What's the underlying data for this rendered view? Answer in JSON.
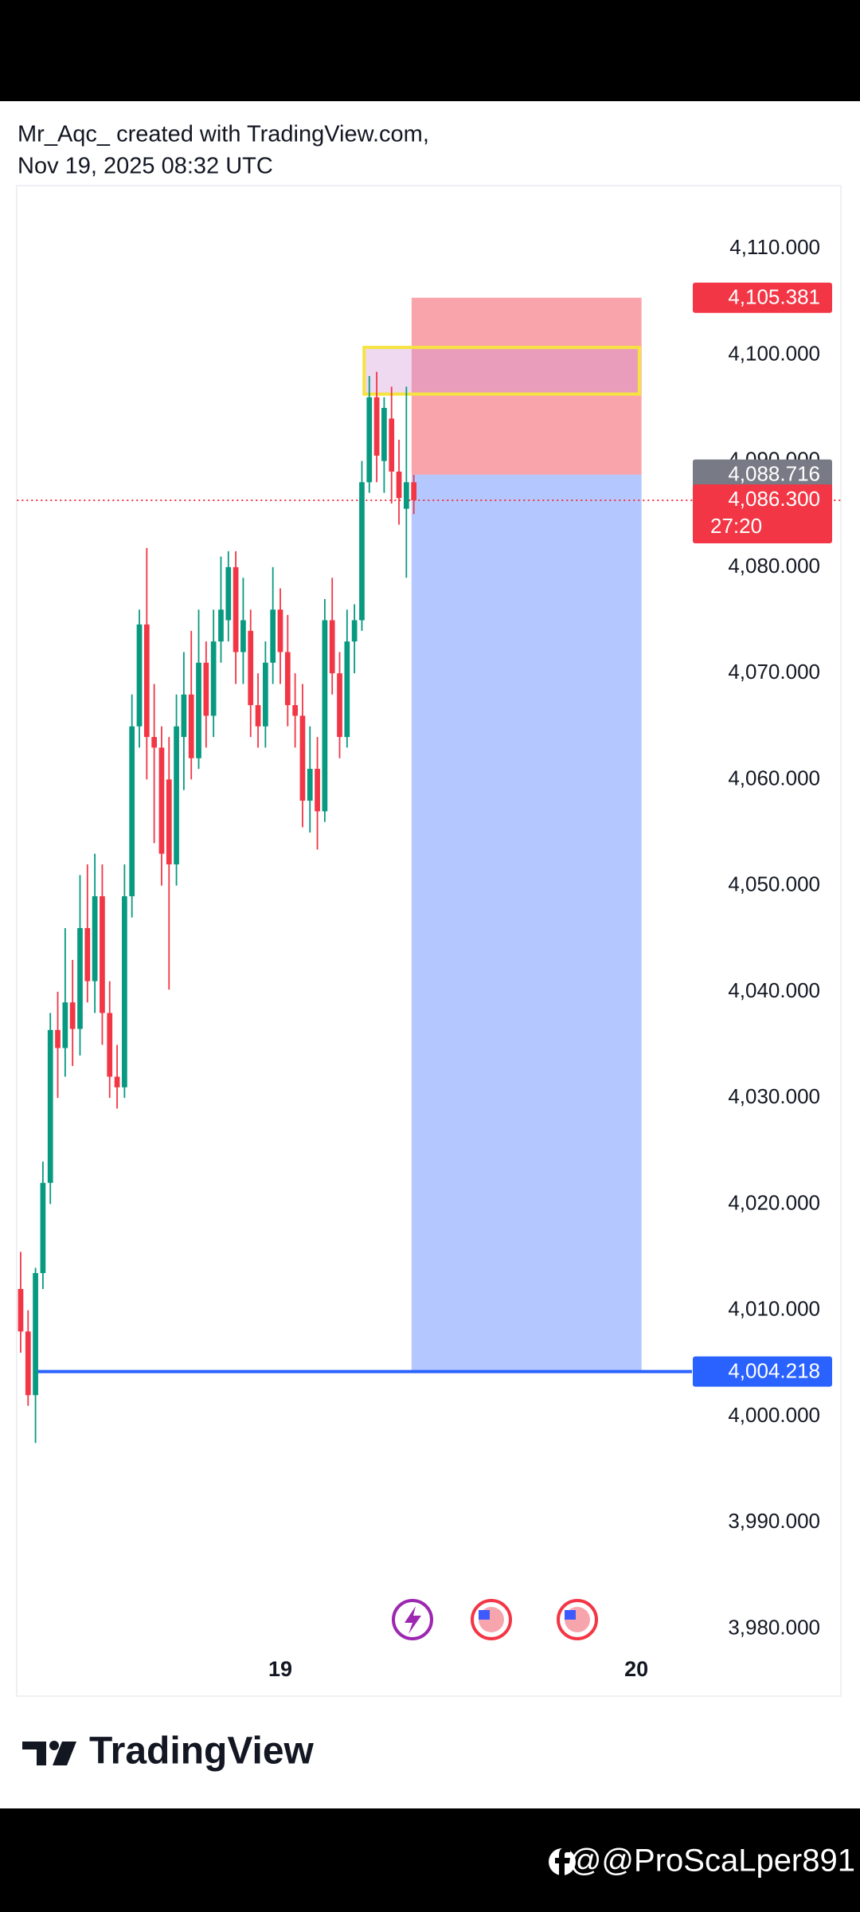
{
  "header": {
    "line1": "Mr_Aqc_ created with TradingView.com,",
    "line2": "Nov 19, 2025 08:32 UTC"
  },
  "chart_data": {
    "type": "candlestick",
    "x": [
      0,
      1,
      2,
      3,
      4,
      5,
      6,
      7,
      8,
      9,
      10,
      11,
      12,
      13,
      14,
      15,
      16,
      17,
      18,
      19,
      20,
      21,
      22,
      23,
      24,
      25,
      26,
      27,
      28,
      29,
      30,
      31,
      32,
      33,
      34,
      35,
      36,
      37,
      38,
      39,
      40,
      41,
      42,
      43,
      44,
      45,
      46,
      47,
      48,
      49,
      50,
      51,
      52,
      53
    ],
    "open": [
      4012,
      4008,
      4002,
      4013.5,
      4022,
      4036.4,
      4034.7,
      4039,
      4036.5,
      4046,
      4041,
      4049,
      4038,
      4032,
      4031,
      4049,
      4065,
      4074.6,
      4064,
      4063,
      4060,
      4052,
      4064,
      4068,
      4062,
      4071,
      4066,
      4073,
      4075,
      4080,
      4072,
      4074,
      4067,
      4065,
      4071,
      4076,
      4072,
      4067,
      4066,
      4058,
      4061,
      4057,
      4075,
      4070,
      4064,
      4073,
      4075,
      4088,
      4096,
      4090,
      4094,
      4089,
      4085.5,
      4088
    ],
    "high": [
      4015.5,
      4010,
      4014,
      4024,
      4038,
      4040,
      4046,
      4043,
      4051,
      4052,
      4053,
      4052,
      4041,
      4035,
      4052,
      4068,
      4076,
      4081.8,
      4069,
      4065,
      4064,
      4068,
      4072,
      4074,
      4076,
      4073,
      4076,
      4081,
      4081.5,
      4081.5,
      4079,
      4076,
      4070,
      4073,
      4080,
      4078,
      4075.5,
      4070,
      4069,
      4065,
      4064,
      4077,
      4079,
      4072,
      4076,
      4076.5,
      4090,
      4098,
      4098.4,
      4096,
      4097,
      4092,
      4097,
      4088.7
    ],
    "low": [
      4006,
      4001,
      3997.5,
      4012,
      4020,
      4030,
      4032,
      4033,
      4034,
      4039,
      4038,
      4035,
      4030,
      4029,
      4030,
      4047,
      4063,
      4060,
      4054,
      4050,
      4040.2,
      4050,
      4059,
      4060,
      4061,
      4063,
      4064,
      4071,
      4073,
      4069,
      4069,
      4064,
      4063,
      4063,
      4069,
      4069,
      4065,
      4063,
      4055.5,
      4055,
      4053.4,
      4056,
      4068,
      4062,
      4063,
      4070,
      4074,
      4087,
      4088,
      4087,
      4086,
      4084,
      4079,
      4085
    ],
    "close": [
      4008,
      4002,
      4013.5,
      4022,
      4036.4,
      4034.7,
      4039,
      4036.5,
      4046,
      4041,
      4049,
      4038,
      4032,
      4031,
      4049,
      4065,
      4074.6,
      4064,
      4063,
      4053,
      4052,
      4065,
      4068,
      4062,
      4071,
      4066,
      4073,
      4076,
      4080,
      4072,
      4075,
      4067,
      4065,
      4071,
      4076,
      4072,
      4067,
      4066,
      4058,
      4061,
      4057,
      4075,
      4070,
      4064,
      4073,
      4075,
      4088,
      4096,
      4090.5,
      4095,
      4089,
      4086.5,
      4088,
      4086.3
    ],
    "up_color": "#089981",
    "down_color": "#f23645",
    "xlim": [
      -0.5,
      90.5
    ],
    "xticks": [
      {
        "value": 35,
        "label": "19"
      },
      {
        "value": 83,
        "label": "20"
      }
    ],
    "ylim": [
      3973.65,
      4115.94
    ],
    "yticks": [
      {
        "value": 3980,
        "label": "3,980.000"
      },
      {
        "value": 3990,
        "label": "3,990.000"
      },
      {
        "value": 4000,
        "label": "4,000.000"
      },
      {
        "value": 4010,
        "label": "4,010.000"
      },
      {
        "value": 4020,
        "label": "4,020.000"
      },
      {
        "value": 4030,
        "label": "4,030.000"
      },
      {
        "value": 4040,
        "label": "4,040.000"
      },
      {
        "value": 4050,
        "label": "4,050.000"
      },
      {
        "value": 4060,
        "label": "4,060.000"
      },
      {
        "value": 4070,
        "label": "4,070.000"
      },
      {
        "value": 4080,
        "label": "4,080.000"
      },
      {
        "value": 4090,
        "label": "4,090.000"
      },
      {
        "value": 4100,
        "label": "4,100.000"
      },
      {
        "value": 4110,
        "label": "4,110.000"
      }
    ],
    "position": {
      "stop": {
        "value": 4105.381,
        "label": "4,105.381"
      },
      "entry": {
        "value": 4088.716,
        "label": "4,088.716"
      },
      "target": {
        "value": 4004.218,
        "label": "4,004.218"
      },
      "x_start": 52.7,
      "x_end": 83.7
    },
    "zone": {
      "x_start": 46.3,
      "x_end": 83.4,
      "top": 4100.7,
      "bottom": 4096.3
    },
    "target_line_start": 2.1,
    "last_price": {
      "value": 4086.3,
      "label": "4,086.300"
    },
    "countdown": "27:20"
  },
  "footer": {
    "logo": "TradingView",
    "watermark": "@@ProScaLper891"
  }
}
